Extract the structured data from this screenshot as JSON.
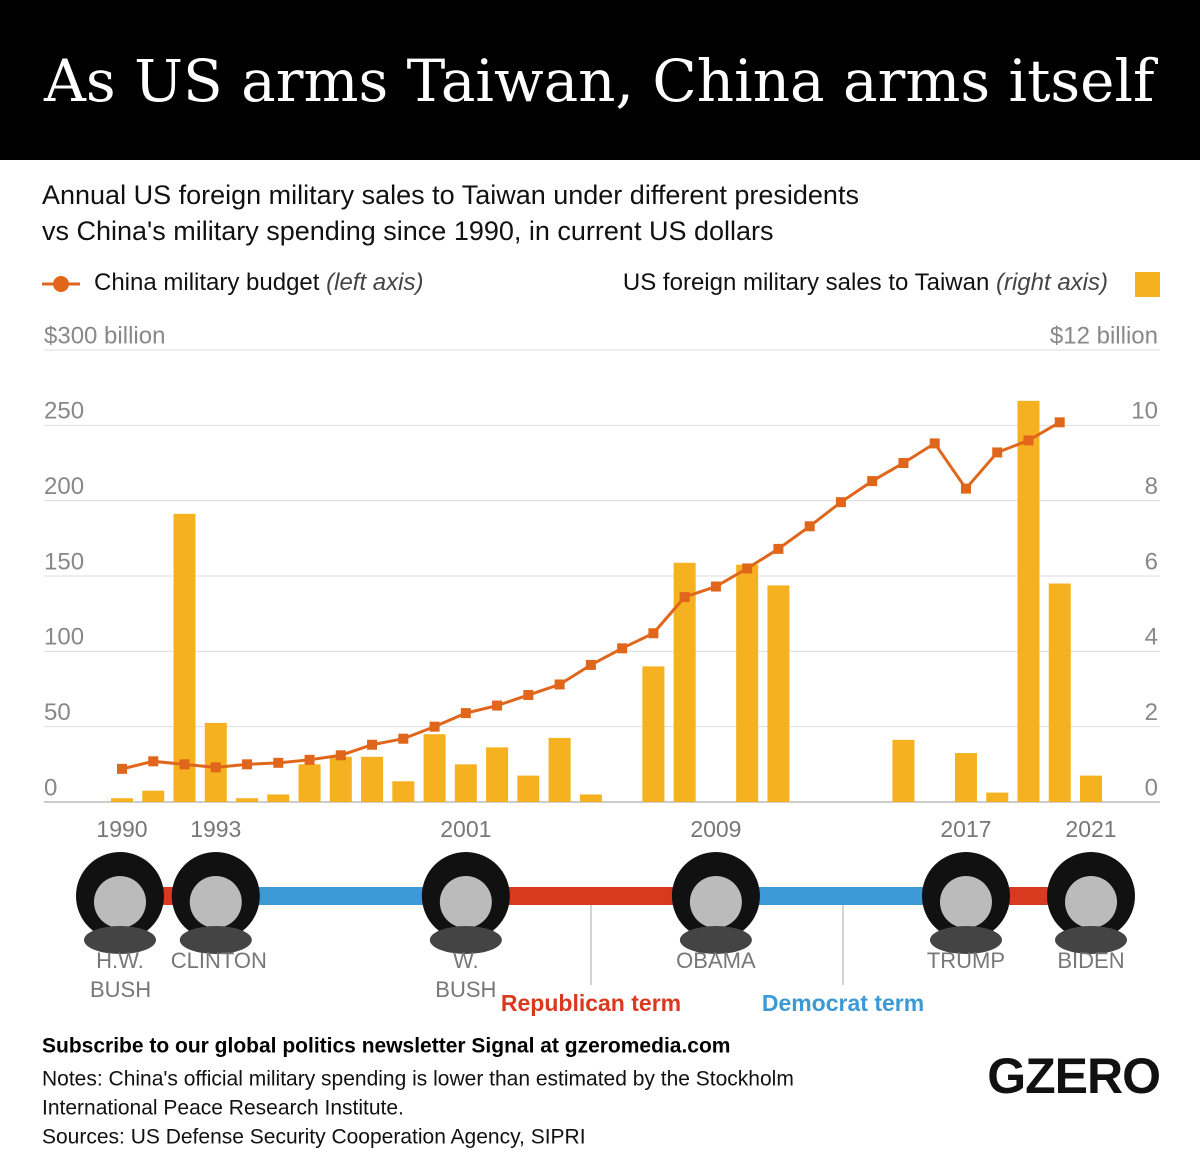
{
  "chart_data": {
    "type": "bar_line",
    "title": "As US arms Taiwan, China arms itself",
    "subtitle_lines": [
      "Annual US foreign military sales to Taiwan under different presidents",
      "vs China's military spending since 1990, in current US dollars"
    ],
    "x": [
      1990,
      1991,
      1992,
      1993,
      1994,
      1995,
      1996,
      1997,
      1998,
      1999,
      2000,
      2001,
      2002,
      2003,
      2004,
      2005,
      2006,
      2007,
      2008,
      2009,
      2010,
      2011,
      2012,
      2013,
      2014,
      2015,
      2016,
      2017,
      2018,
      2019,
      2020,
      2021
    ],
    "xlim": [
      1990,
      2021
    ],
    "xticks": [
      1990,
      1993,
      2001,
      2009,
      2017,
      2021
    ],
    "series": [
      {
        "name": "China military budget",
        "axis_note": "(left axis)",
        "type": "line",
        "axis": "y",
        "color": "#e0661c",
        "values": [
          22,
          27,
          25,
          23,
          25,
          26,
          28,
          31,
          38,
          42,
          50,
          59,
          64,
          71,
          78,
          91,
          102,
          112,
          136,
          143,
          155,
          168,
          183,
          199,
          213,
          225,
          238,
          208,
          232,
          240,
          252,
          null
        ]
      },
      {
        "name": "US foreign military sales to Taiwan",
        "axis_note": "(right axis)",
        "type": "bar",
        "axis": "y2",
        "color": "#f5b120",
        "values": [
          0.1,
          0.3,
          7.65,
          2.1,
          0.1,
          0.2,
          1.0,
          1.2,
          1.2,
          0.55,
          1.8,
          1.0,
          1.45,
          0.7,
          1.7,
          0.2,
          0,
          3.6,
          6.35,
          0,
          6.3,
          5.75,
          0,
          0,
          0,
          1.65,
          0,
          1.3,
          0.25,
          10.65,
          5.8,
          0.7
        ]
      }
    ],
    "ylim": [
      0,
      300
    ],
    "yticks": [
      0,
      50,
      100,
      150,
      200,
      250,
      {
        "value": 300,
        "label": "$300 billion"
      }
    ],
    "y2lim": [
      0,
      12
    ],
    "y2ticks": [
      0,
      2,
      4,
      6,
      8,
      10,
      {
        "value": 12,
        "label": "$12 billion"
      }
    ],
    "grid": true,
    "presidents": [
      "H.W. BUSH",
      "CLINTON",
      "W. BUSH",
      "OBAMA",
      "TRUMP",
      "BIDEN"
    ],
    "terms": [
      {
        "label": "Republican term",
        "color": "#d9391f"
      },
      {
        "label": "Democrat term",
        "color": "#3b9ad6"
      }
    ],
    "subscribe": "Subscribe to our global politics newsletter Signal at gzeromedia.com",
    "notes_lines": [
      "Notes: China's official military spending is lower than estimated by the Stockholm",
      "International Peace Research Institute."
    ],
    "sources": "Sources: US Defense Security Cooperation Agency, SIPRI",
    "logo": "GZERO"
  }
}
